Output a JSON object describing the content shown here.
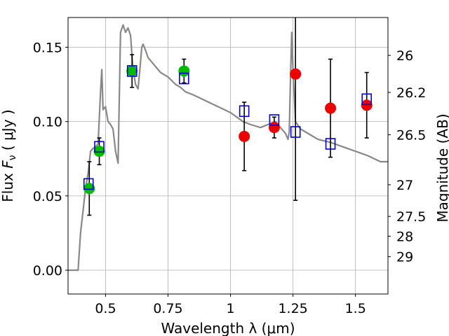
{
  "chart_data": {
    "type": "scatter",
    "xlabel": "Wavelength  λ (μm)",
    "ylabel": "Flux  F_ν  ( μJy )",
    "ylabel_right": "Magnitude (AB)",
    "xlim": [
      0.35,
      1.63
    ],
    "ylim": [
      -0.016,
      0.17
    ],
    "grid": true,
    "x_ticks": [
      0.5,
      0.75,
      1.0,
      1.25,
      1.5
    ],
    "x_tick_labels": [
      "0.5",
      "0.75",
      "1",
      "1.25",
      "1.5"
    ],
    "y_ticks": [
      0.0,
      0.05,
      0.1,
      0.15
    ],
    "y_tick_labels": [
      "0.00",
      "0.05",
      "0.10",
      "0.15"
    ],
    "right_ticks": [
      {
        "label": "26",
        "flux": 0.1445
      },
      {
        "label": "26.2",
        "flux": 0.1196
      },
      {
        "label": "26.5",
        "flux": 0.0911
      },
      {
        "label": "27",
        "flux": 0.0575
      },
      {
        "label": "27.5",
        "flux": 0.0362
      },
      {
        "label": "28",
        "flux": 0.0229
      },
      {
        "label": "29",
        "flux": 0.0091
      }
    ],
    "series": [
      {
        "kind": "green-points",
        "color": "#00bb00",
        "points": [
          {
            "x": 0.435,
            "y": 0.055,
            "err": 0.018
          },
          {
            "x": 0.475,
            "y": 0.08,
            "err": 0.009
          },
          {
            "x": 0.606,
            "y": 0.134,
            "err": 0.011
          },
          {
            "x": 0.814,
            "y": 0.134,
            "err": 0.008
          }
        ]
      },
      {
        "kind": "red-points",
        "color": "#ee0000",
        "points": [
          {
            "x": 1.055,
            "y": 0.09,
            "err": 0.023
          },
          {
            "x": 1.175,
            "y": 0.096,
            "err": 0.007
          },
          {
            "x": 1.26,
            "y": 0.132,
            "err": 0.085
          },
          {
            "x": 1.4,
            "y": 0.109,
            "err": 0.033
          },
          {
            "x": 1.545,
            "y": 0.111,
            "err": 0.022
          }
        ]
      },
      {
        "kind": "model-boxes",
        "color": "#0000dd",
        "points": [
          {
            "x": 0.432,
            "y": 0.058
          },
          {
            "x": 0.475,
            "y": 0.083
          },
          {
            "x": 0.606,
            "y": 0.134
          },
          {
            "x": 0.814,
            "y": 0.129
          },
          {
            "x": 1.055,
            "y": 0.107
          },
          {
            "x": 1.175,
            "y": 0.101
          },
          {
            "x": 1.26,
            "y": 0.093
          },
          {
            "x": 1.4,
            "y": 0.085
          },
          {
            "x": 1.545,
            "y": 0.115
          }
        ]
      },
      {
        "kind": "model-spectrum",
        "color": "#888888",
        "x": [
          0.35,
          0.39,
          0.4,
          0.41,
          0.42,
          0.43,
          0.44,
          0.45,
          0.46,
          0.47,
          0.48,
          0.485,
          0.49,
          0.5,
          0.51,
          0.52,
          0.53,
          0.54,
          0.55,
          0.56,
          0.57,
          0.58,
          0.59,
          0.6,
          0.61,
          0.62,
          0.63,
          0.64,
          0.645,
          0.65,
          0.66,
          0.67,
          0.68,
          0.7,
          0.72,
          0.75,
          0.78,
          0.8,
          0.82,
          0.85,
          0.9,
          0.95,
          1.0,
          1.05,
          1.08,
          1.1,
          1.12,
          1.15,
          1.18,
          1.2,
          1.22,
          1.23,
          1.235,
          1.24,
          1.245,
          1.25,
          1.26,
          1.28,
          1.3,
          1.35,
          1.4,
          1.45,
          1.5,
          1.55,
          1.6,
          1.63
        ],
        "y": [
          0.0,
          0.0,
          0.025,
          0.04,
          0.055,
          0.065,
          0.08,
          0.082,
          0.083,
          0.085,
          0.12,
          0.135,
          0.108,
          0.11,
          0.1,
          0.098,
          0.095,
          0.08,
          0.072,
          0.16,
          0.165,
          0.16,
          0.163,
          0.158,
          0.135,
          0.125,
          0.122,
          0.14,
          0.15,
          0.152,
          0.148,
          0.143,
          0.141,
          0.137,
          0.133,
          0.13,
          0.125,
          0.123,
          0.12,
          0.118,
          0.114,
          0.11,
          0.106,
          0.1,
          0.098,
          0.097,
          0.096,
          0.098,
          0.1,
          0.096,
          0.092,
          0.088,
          0.093,
          0.13,
          0.16,
          0.135,
          0.1,
          0.095,
          0.093,
          0.088,
          0.086,
          0.083,
          0.08,
          0.077,
          0.073,
          0.073
        ]
      }
    ]
  }
}
